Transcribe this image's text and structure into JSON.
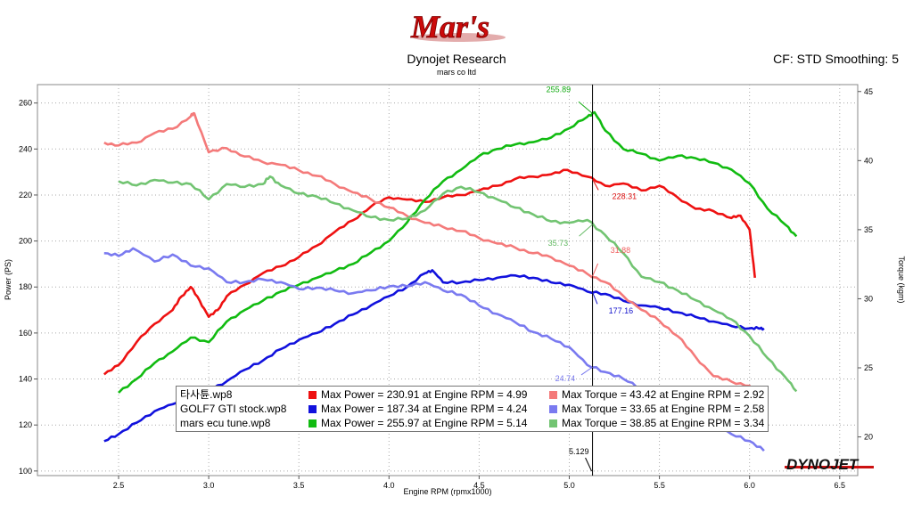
{
  "logo": {
    "text": "Mar's"
  },
  "header": {
    "title": "Dynojet Research",
    "subtitle": "mars co ltd",
    "cf": "CF: STD Smoothing: 5"
  },
  "brand": {
    "name": "DYNOJET"
  },
  "legend": [
    {
      "file": "타사튠.wp8",
      "color": "#ee1111",
      "power_text": "Max Power = 230.91 at Engine RPM = 4.99",
      "torque_color": "#f47a7a",
      "torque_text": "Max Torque = 43.42 at Engine RPM = 2.92"
    },
    {
      "file": "GOLF7 GTI stock.wp8",
      "color": "#1111dd",
      "power_text": "Max Power = 187.34 at Engine RPM = 4.24",
      "torque_color": "#7a7af0",
      "torque_text": "Max Torque = 33.65 at Engine RPM = 2.58"
    },
    {
      "file": "mars ecu tune.wp8",
      "color": "#11bb11",
      "power_text": "Max Power = 255.97 at Engine RPM = 5.14",
      "torque_color": "#72c472",
      "torque_text": "Max Torque = 38.85 at Engine RPM = 3.34"
    }
  ],
  "chart_data": {
    "type": "line",
    "xlabel": "Engine RPM (rpmx1000)",
    "ylabel": "Power (PS)",
    "y2label": "Torque (kgm)",
    "xlim": [
      2.05,
      6.6
    ],
    "ylim": [
      98,
      268
    ],
    "y2lim": [
      17.2,
      45.5
    ],
    "x_ticks": [
      "2.5",
      "3.0",
      "3.5",
      "4.0",
      "4.5",
      "5.0",
      "5.5",
      "6.0",
      "6.5"
    ],
    "y_ticks": [
      "100",
      "120",
      "140",
      "160",
      "180",
      "200",
      "220",
      "240",
      "260"
    ],
    "y2_ticks": [
      "20",
      "25",
      "30",
      "35",
      "40",
      "45"
    ],
    "cursor": {
      "x": 5.129,
      "label": "5.129"
    },
    "cursor_labels": [
      {
        "text": "255.89",
        "color": "#11aa11"
      },
      {
        "text": "228.31",
        "color": "#dd1111"
      },
      {
        "text": "35.73",
        "color": "#66bb66"
      },
      {
        "text": "31.88",
        "color": "#f06060"
      },
      {
        "text": "177.16",
        "color": "#1111cc"
      },
      {
        "text": "24.74",
        "color": "#7777ee"
      }
    ],
    "series": [
      {
        "name": "타사튠.wp8 Power",
        "axis": "left",
        "color": "#ee1111",
        "x": [
          2.42,
          2.5,
          2.6,
          2.7,
          2.8,
          2.85,
          2.9,
          2.95,
          3.0,
          3.05,
          3.1,
          3.2,
          3.3,
          3.4,
          3.5,
          3.6,
          3.7,
          3.8,
          3.9,
          4.0,
          4.1,
          4.2,
          4.3,
          4.4,
          4.5,
          4.6,
          4.7,
          4.8,
          4.9,
          4.99,
          5.1,
          5.2,
          5.3,
          5.4,
          5.5,
          5.6,
          5.7,
          5.8,
          5.9,
          5.95,
          6.0,
          6.03
        ],
        "y": [
          142,
          146,
          156,
          164,
          170,
          176,
          180,
          174,
          167,
          170,
          176,
          181,
          186,
          189,
          193,
          198,
          204,
          209,
          215,
          219,
          218,
          217,
          219,
          220,
          222,
          224,
          227,
          228,
          229,
          230.9,
          228,
          224,
          225,
          222,
          224,
          219,
          214,
          213,
          210,
          211,
          205,
          184
        ]
      },
      {
        "name": "GOLF7 GTI stock.wp8 Power",
        "axis": "left",
        "color": "#1111dd",
        "x": [
          2.42,
          2.5,
          2.6,
          2.7,
          2.8,
          2.9,
          3.0,
          3.1,
          3.2,
          3.3,
          3.4,
          3.5,
          3.6,
          3.7,
          3.8,
          3.9,
          4.0,
          4.1,
          4.2,
          4.24,
          4.3,
          4.4,
          4.5,
          4.6,
          4.7,
          4.8,
          4.9,
          5.0,
          5.1,
          5.2,
          5.3,
          5.4,
          5.5,
          5.6,
          5.7,
          5.8,
          5.9,
          6.0,
          6.05,
          6.08
        ],
        "y": [
          113,
          116,
          121,
          126,
          129,
          133,
          135,
          139,
          144,
          148,
          153,
          157,
          160,
          164,
          168,
          172,
          176,
          180,
          186,
          187.3,
          182,
          182,
          183,
          184,
          185,
          184,
          182,
          181,
          178,
          177,
          174,
          172,
          171,
          169,
          167,
          165,
          163,
          162,
          162,
          162
        ]
      },
      {
        "name": "mars ecu tune.wp8 Power",
        "axis": "left",
        "color": "#11bb11",
        "x": [
          2.5,
          2.6,
          2.7,
          2.8,
          2.9,
          3.0,
          3.1,
          3.2,
          3.3,
          3.4,
          3.5,
          3.6,
          3.7,
          3.8,
          3.9,
          4.0,
          4.1,
          4.2,
          4.3,
          4.4,
          4.5,
          4.6,
          4.7,
          4.8,
          4.9,
          5.0,
          5.1,
          5.14,
          5.2,
          5.3,
          5.4,
          5.5,
          5.6,
          5.7,
          5.8,
          5.9,
          6.0,
          6.1,
          6.2,
          6.26
        ],
        "y": [
          134,
          140,
          147,
          152,
          158,
          156,
          165,
          170,
          174,
          178,
          181,
          184,
          187,
          190,
          195,
          200,
          208,
          218,
          226,
          231,
          237,
          240,
          242,
          243,
          245,
          249,
          254,
          255.97,
          248,
          240,
          238,
          235,
          237,
          236,
          234,
          231,
          225,
          214,
          207,
          202
        ]
      },
      {
        "name": "타사튠.wp8 Torque",
        "axis": "right",
        "color": "#f47a7a",
        "x": [
          2.42,
          2.5,
          2.6,
          2.7,
          2.8,
          2.9,
          2.92,
          3.0,
          3.1,
          3.2,
          3.3,
          3.4,
          3.5,
          3.6,
          3.7,
          3.8,
          3.9,
          4.0,
          4.1,
          4.2,
          4.3,
          4.4,
          4.5,
          4.6,
          4.7,
          4.8,
          4.9,
          5.0,
          5.1,
          5.2,
          5.3,
          5.4,
          5.5,
          5.6,
          5.7,
          5.8,
          5.9,
          6.0,
          6.02
        ],
        "y": [
          41.3,
          41.1,
          41.3,
          42,
          42.3,
          43.2,
          43.42,
          40.6,
          40.9,
          40.3,
          39.9,
          39.7,
          39.3,
          38.9,
          38.3,
          37.7,
          37.2,
          36.6,
          36,
          35.5,
          35.2,
          34.9,
          34.4,
          34,
          33.7,
          33.3,
          33,
          32.4,
          31.8,
          31.2,
          30.2,
          29.2,
          28.4,
          27.3,
          25.8,
          24.4,
          24,
          23.7,
          22
        ]
      },
      {
        "name": "GOLF7 GTI stock.wp8 Torque",
        "axis": "right",
        "color": "#7a7af0",
        "x": [
          2.42,
          2.5,
          2.58,
          2.7,
          2.8,
          2.9,
          3.0,
          3.1,
          3.2,
          3.3,
          3.4,
          3.5,
          3.6,
          3.7,
          3.8,
          3.9,
          4.0,
          4.1,
          4.2,
          4.3,
          4.4,
          4.5,
          4.6,
          4.7,
          4.8,
          4.9,
          5.0,
          5.1,
          5.2,
          5.3,
          5.4,
          5.5,
          5.6,
          5.7,
          5.8,
          5.9,
          6.0,
          6.08
        ],
        "y": [
          33.3,
          33.1,
          33.65,
          32.7,
          33.2,
          32.4,
          32.2,
          31.2,
          31.2,
          31.4,
          31.2,
          30.7,
          30.8,
          30.6,
          30.4,
          30.6,
          30.9,
          30.9,
          31.2,
          30.6,
          30.3,
          29.5,
          28.9,
          28.3,
          27.6,
          27.1,
          26.5,
          25.2,
          24.7,
          24.2,
          23.5,
          23.2,
          22.4,
          21.6,
          20.8,
          20.2,
          19.7,
          19
        ]
      },
      {
        "name": "mars ecu tune.wp8 Torque",
        "axis": "right",
        "color": "#72c472",
        "x": [
          2.5,
          2.6,
          2.7,
          2.8,
          2.9,
          3.0,
          3.1,
          3.2,
          3.3,
          3.34,
          3.4,
          3.5,
          3.6,
          3.7,
          3.8,
          3.9,
          4.0,
          4.1,
          4.2,
          4.3,
          4.4,
          4.5,
          4.6,
          4.7,
          4.8,
          4.9,
          5.0,
          5.1,
          5.2,
          5.3,
          5.4,
          5.5,
          5.6,
          5.7,
          5.8,
          5.9,
          6.0,
          6.1,
          6.2,
          6.26
        ],
        "y": [
          38.5,
          38.2,
          38.6,
          38.4,
          38.3,
          37.2,
          38.3,
          38.1,
          38.3,
          38.85,
          38.2,
          37.6,
          37.4,
          36.9,
          36.4,
          35.9,
          35.7,
          35.8,
          36.4,
          37.6,
          38.1,
          37.7,
          37.2,
          36.6,
          36.1,
          35.6,
          35.5,
          35.7,
          34.6,
          33.3,
          31.6,
          31.2,
          30.6,
          29.9,
          29.2,
          28.5,
          27.3,
          25.7,
          24.3,
          23.3
        ]
      }
    ]
  }
}
